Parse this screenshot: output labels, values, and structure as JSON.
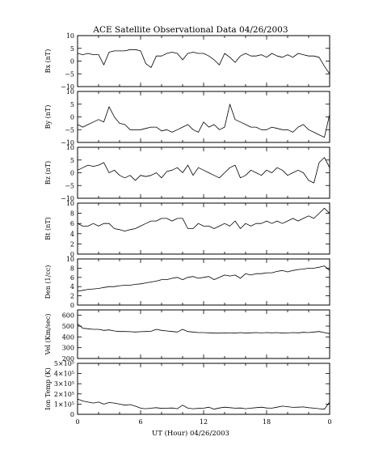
{
  "page": {
    "background": "#ffffff",
    "ink_color": "#000000"
  },
  "figure": {
    "title": "ACE Satellite Observational Data   04/26/2003",
    "xlabel": "UT (Hour)  04/26/2003",
    "x_ticks": [
      "0",
      "6",
      "12",
      "18",
      "0"
    ]
  },
  "chart_data": [
    {
      "type": "line",
      "ylabel": "Bx (nT)",
      "ylim": [
        -10,
        10
      ],
      "yticks": [
        "10",
        "5",
        "0",
        "−5",
        "−10"
      ],
      "ytick_values": [
        10,
        5,
        0,
        -5,
        -10
      ],
      "x_unit": "hour UT",
      "xlim": [
        0,
        24
      ],
      "series": [
        {
          "x": [
            0,
            0.5,
            1,
            1.5,
            2,
            2.5,
            3,
            3.5,
            4,
            4.5,
            5,
            5.5,
            6,
            6.5,
            7,
            7.5,
            8,
            8.5,
            9,
            9.5,
            10,
            10.5,
            11,
            11.5,
            12,
            12.5,
            13,
            13.5,
            14,
            14.5,
            15,
            15.5,
            16,
            16.5,
            17,
            17.5,
            18,
            18.5,
            19,
            19.5,
            20,
            20.5,
            21,
            21.5,
            22,
            22.5,
            23,
            23.5,
            24
          ],
          "values": [
            3,
            2.5,
            3,
            2.5,
            2.5,
            -1.5,
            3.5,
            4,
            4,
            4,
            4.5,
            4.5,
            4,
            -1,
            -2.5,
            2,
            2,
            3,
            3.5,
            3,
            0.5,
            3,
            3.5,
            3,
            3,
            2,
            0.5,
            -1.5,
            3,
            1.5,
            -0.5,
            2,
            3,
            2,
            2,
            2.5,
            1.5,
            3,
            2,
            1.5,
            2.5,
            1.5,
            3,
            2.5,
            2,
            2,
            1.5,
            -2,
            -5
          ]
        }
      ]
    },
    {
      "type": "line",
      "ylabel": "By (nT)",
      "ylim": [
        -10,
        10
      ],
      "yticks": [
        "10",
        "5",
        "0",
        "−5",
        "−10"
      ],
      "ytick_values": [
        10,
        5,
        0,
        -5,
        -10
      ],
      "x_unit": "hour UT",
      "xlim": [
        0,
        24
      ],
      "series": [
        {
          "x": [
            0,
            0.5,
            1,
            1.5,
            2,
            2.5,
            3,
            3.5,
            4,
            4.5,
            5,
            5.5,
            6,
            6.5,
            7,
            7.5,
            8,
            8.5,
            9,
            9.5,
            10,
            10.5,
            11,
            11.5,
            12,
            12.5,
            13,
            13.5,
            14,
            14.5,
            15,
            15.5,
            16,
            16.5,
            17,
            17.5,
            18,
            18.5,
            19,
            19.5,
            20,
            20.5,
            21,
            21.5,
            22,
            22.5,
            23,
            23.5,
            24
          ],
          "values": [
            -3,
            -4,
            -3,
            -2,
            -1,
            -2,
            4,
            0,
            -2.5,
            -3,
            -5,
            -5,
            -5,
            -4.5,
            -4,
            -4,
            -5.5,
            -5,
            -6,
            -5,
            -4,
            -3,
            -5,
            -6,
            -2,
            -4,
            -3,
            -5,
            -4,
            5,
            -1,
            -2,
            -3,
            -4,
            -4,
            -5,
            -5,
            -4,
            -4.5,
            -5,
            -5,
            -6,
            -4,
            -3,
            -5,
            -6,
            -7,
            -8,
            1
          ]
        }
      ]
    },
    {
      "type": "line",
      "ylabel": "Bz (nT)",
      "ylim": [
        -10,
        10
      ],
      "yticks": [
        "10",
        "5",
        "0",
        "−5",
        "−10"
      ],
      "ytick_values": [
        10,
        5,
        0,
        -5,
        -10
      ],
      "x_unit": "hour UT",
      "xlim": [
        0,
        24
      ],
      "series": [
        {
          "x": [
            0,
            0.5,
            1,
            1.5,
            2,
            2.5,
            3,
            3.5,
            4,
            4.5,
            5,
            5.5,
            6,
            6.5,
            7,
            7.5,
            8,
            8.5,
            9,
            9.5,
            10,
            10.5,
            11,
            11.5,
            12,
            12.5,
            13,
            13.5,
            14,
            14.5,
            15,
            15.5,
            16,
            16.5,
            17,
            17.5,
            18,
            18.5,
            19,
            19.5,
            20,
            20.5,
            21,
            21.5,
            22,
            22.5,
            23,
            23.5,
            24
          ],
          "values": [
            1,
            2,
            3,
            2.5,
            3,
            4,
            0,
            1,
            -1,
            -2,
            -1,
            -3,
            -1,
            -1.5,
            -1,
            0,
            -2,
            0.5,
            1,
            2,
            0,
            3,
            -1,
            2,
            1,
            0,
            -1,
            -2,
            0,
            2,
            3,
            -2,
            -1,
            1,
            0,
            -1,
            1,
            0,
            2,
            1,
            -1,
            0,
            1,
            0,
            -3,
            -4,
            4,
            6,
            2
          ]
        }
      ]
    },
    {
      "type": "line",
      "ylabel": "Bt (nT)",
      "ylim": [
        0,
        10
      ],
      "yticks": [
        "10",
        "8",
        "6",
        "4",
        "2",
        "0"
      ],
      "ytick_values": [
        10,
        8,
        6,
        4,
        2,
        0
      ],
      "x_unit": "hour UT",
      "xlim": [
        0,
        24
      ],
      "series": [
        {
          "x": [
            0,
            0.5,
            1,
            1.5,
            2,
            2.5,
            3,
            3.5,
            4,
            4.5,
            5,
            5.5,
            6,
            6.5,
            7,
            7.5,
            8,
            8.5,
            9,
            9.5,
            10,
            10.5,
            11,
            11.5,
            12,
            12.5,
            13,
            13.5,
            14,
            14.5,
            15,
            15.5,
            16,
            16.5,
            17,
            17.5,
            18,
            18.5,
            19,
            19.5,
            20,
            20.5,
            21,
            21.5,
            22,
            22.5,
            23,
            23.5,
            24
          ],
          "values": [
            6,
            5.5,
            5.5,
            6,
            5.5,
            6,
            6,
            5,
            4.8,
            4.5,
            4.8,
            5,
            5.5,
            6,
            6.5,
            6.5,
            7,
            7,
            6.5,
            7,
            7,
            5,
            5,
            6,
            5.5,
            5.5,
            5,
            5.5,
            6,
            5.5,
            6.5,
            5,
            6,
            5.5,
            6,
            6,
            6.5,
            6,
            6.5,
            6,
            6.5,
            7,
            6.5,
            7,
            7.5,
            7,
            8,
            9,
            8
          ]
        }
      ]
    },
    {
      "type": "line",
      "ylabel": "Den (1/cc)",
      "ylim": [
        0,
        10
      ],
      "yticks": [
        "10",
        "8",
        "6",
        "4",
        "2",
        "0"
      ],
      "ytick_values": [
        10,
        8,
        6,
        4,
        2,
        0
      ],
      "x_unit": "hour UT",
      "xlim": [
        0,
        24
      ],
      "series": [
        {
          "x": [
            0,
            0.5,
            1,
            1.5,
            2,
            2.5,
            3,
            3.5,
            4,
            4.5,
            5,
            5.5,
            6,
            6.5,
            7,
            7.5,
            8,
            8.5,
            9,
            9.5,
            10,
            10.5,
            11,
            11.5,
            12,
            12.5,
            13,
            13.5,
            14,
            14.5,
            15,
            15.5,
            16,
            16.5,
            17,
            17.5,
            18,
            18.5,
            19,
            19.5,
            20,
            20.5,
            21,
            21.5,
            22,
            22.5,
            23,
            23.5,
            24
          ],
          "values": [
            3,
            3.2,
            3.4,
            3.5,
            3.6,
            3.8,
            4,
            4,
            4.2,
            4.3,
            4.3,
            4.5,
            4.6,
            4.8,
            5,
            5.2,
            5.5,
            5.5,
            5.8,
            6,
            5.5,
            6,
            6.2,
            5.8,
            6,
            6.2,
            5.5,
            6,
            6.5,
            6.3,
            6.5,
            5.8,
            6.8,
            6.5,
            6.8,
            6.8,
            7,
            7,
            7.3,
            7.5,
            7.2,
            7.5,
            7.7,
            7.8,
            8,
            8,
            8.2,
            8.5,
            7.5
          ]
        }
      ]
    },
    {
      "type": "line",
      "ylabel": "Vel (Km/sec)",
      "ylim": [
        200,
        650
      ],
      "yticks": [
        "600",
        "500",
        "400",
        "300",
        "200"
      ],
      "ytick_values": [
        600,
        500,
        400,
        300,
        200
      ],
      "x_unit": "hour UT",
      "xlim": [
        0,
        24
      ],
      "series": [
        {
          "x": [
            0,
            0.5,
            1,
            1.5,
            2,
            2.5,
            3,
            3.5,
            4,
            4.5,
            5,
            5.5,
            6,
            6.5,
            7,
            7.5,
            8,
            8.5,
            9,
            9.5,
            10,
            10.5,
            11,
            11.5,
            12,
            12.5,
            13,
            13.5,
            14,
            14.5,
            15,
            15.5,
            16,
            16.5,
            17,
            17.5,
            18,
            18.5,
            19,
            19.5,
            20,
            20.5,
            21,
            21.5,
            22,
            22.5,
            23,
            23.5,
            24
          ],
          "values": [
            520,
            480,
            475,
            470,
            470,
            460,
            465,
            455,
            450,
            450,
            448,
            445,
            448,
            450,
            452,
            470,
            460,
            455,
            450,
            445,
            470,
            450,
            445,
            440,
            440,
            438,
            435,
            435,
            437,
            436,
            435,
            440,
            435,
            438,
            440,
            437,
            440,
            438,
            440,
            435,
            437,
            440,
            438,
            442,
            440,
            445,
            450,
            440,
            430
          ]
        }
      ]
    },
    {
      "type": "line",
      "ylabel": "Ion Temp (K)",
      "ylim": [
        0,
        500000
      ],
      "yticks": [
        "5×10⁵",
        "4×10⁵",
        "3×10⁵",
        "2×10⁵",
        "1×10⁵",
        "0"
      ],
      "ytick_values": [
        500000,
        400000,
        300000,
        200000,
        100000,
        0
      ],
      "x_unit": "hour UT",
      "xlim": [
        0,
        24
      ],
      "series": [
        {
          "x": [
            0,
            0.5,
            1,
            1.5,
            2,
            2.5,
            3,
            3.5,
            4,
            4.5,
            5,
            5.5,
            6,
            6.5,
            7,
            7.5,
            8,
            8.5,
            9,
            9.5,
            10,
            10.5,
            11,
            11.5,
            12,
            12.5,
            13,
            13.5,
            14,
            14.5,
            15,
            15.5,
            16,
            16.5,
            17,
            17.5,
            18,
            18.5,
            19,
            19.5,
            20,
            20.5,
            21,
            21.5,
            22,
            22.5,
            23,
            23.5,
            24
          ],
          "values": [
            150000,
            130000,
            120000,
            110000,
            120000,
            100000,
            115000,
            110000,
            100000,
            90000,
            95000,
            80000,
            60000,
            55000,
            60000,
            65000,
            58000,
            60000,
            62000,
            55000,
            90000,
            60000,
            55000,
            58000,
            60000,
            70000,
            50000,
            62000,
            70000,
            65000,
            60000,
            62000,
            55000,
            60000,
            65000,
            70000,
            62000,
            60000,
            70000,
            80000,
            75000,
            68000,
            70000,
            72000,
            65000,
            60000,
            55000,
            50000,
            120000
          ]
        }
      ]
    }
  ]
}
